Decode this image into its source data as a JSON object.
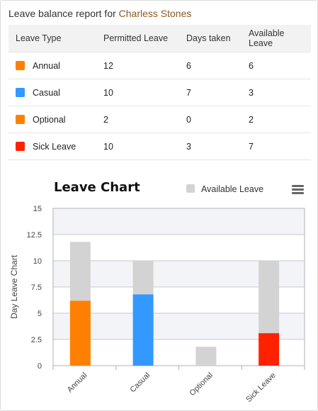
{
  "header": {
    "prefix": "Leave balance report for",
    "employee_name": "Charless Stones"
  },
  "table": {
    "columns": [
      "Leave Type",
      "Permitted Leave",
      "Days taken",
      "Available Leave"
    ],
    "rows": [
      {
        "type": "Annual",
        "color": "#ff8000",
        "permitted": "12",
        "taken": "6",
        "available": "6"
      },
      {
        "type": "Casual",
        "color": "#3399ff",
        "permitted": "10",
        "taken": "7",
        "available": "3"
      },
      {
        "type": "Optional",
        "color": "#ff8000",
        "permitted": "2",
        "taken": "0",
        "available": "2"
      },
      {
        "type": "Sick Leave",
        "color": "#ff2200",
        "permitted": "10",
        "taken": "3",
        "available": "7"
      }
    ]
  },
  "chart_data": {
    "type": "bar",
    "stacked": true,
    "title": "Leave Chart",
    "ylabel": "Day Leave Chart",
    "xlabel": "",
    "ylim": [
      0,
      15
    ],
    "yticks": [
      "0",
      "2.5",
      "5",
      "7.5",
      "10",
      "12.5",
      "15"
    ],
    "categories": [
      "Annual",
      "Casual",
      "Optional",
      "Sick Leave"
    ],
    "legend": {
      "entries": [
        "Available Leave"
      ],
      "placement": "top-right"
    },
    "series": [
      {
        "name": "Available Leave",
        "color": "#d3d3d3",
        "values": [
          5.6,
          3.2,
          1.8,
          6.9
        ]
      },
      {
        "name": "",
        "colors": [
          "#ff8000",
          "#3399ff",
          "#ff8000",
          "#ff2200"
        ],
        "values": [
          6.2,
          6.8,
          0,
          3.1
        ]
      }
    ],
    "grid": true
  },
  "icons": {
    "menu": "hamburger-menu-icon"
  }
}
